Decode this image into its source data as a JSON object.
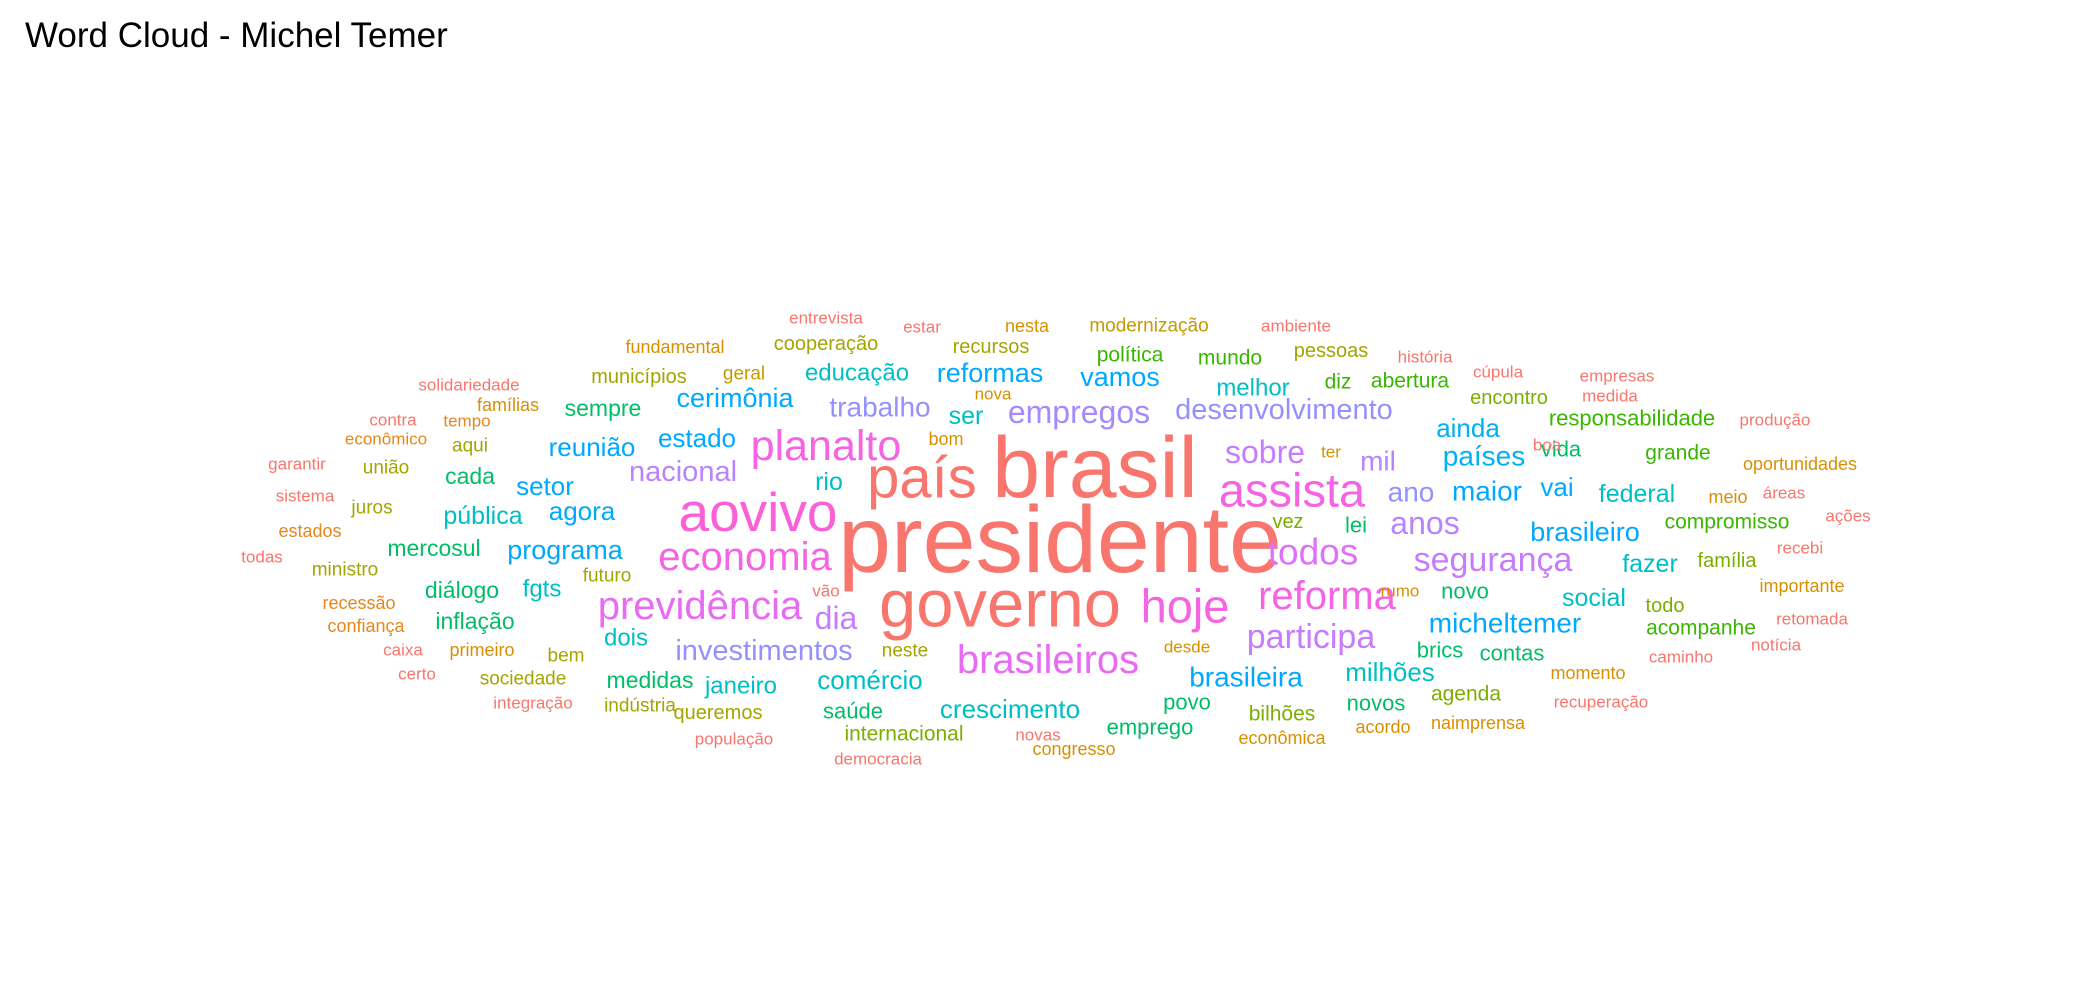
{
  "title": "Word Cloud - Michel Temer",
  "chart_data": {
    "type": "wordcloud",
    "title": "Word Cloud - Michel Temer",
    "words": [
      {
        "text": "presidente",
        "size": 95,
        "color": "#F8766D"
      },
      {
        "text": "brasil",
        "size": 86,
        "color": "#F8766D"
      },
      {
        "text": "governo",
        "size": 67,
        "color": "#F8766D"
      },
      {
        "text": "país",
        "size": 58,
        "color": "#F8766D"
      },
      {
        "text": "aovivo",
        "size": 55,
        "color": "#FB61D7"
      },
      {
        "text": "assista",
        "size": 47,
        "color": "#F564E3"
      },
      {
        "text": "hoje",
        "size": 47,
        "color": "#F564E3"
      },
      {
        "text": "planalto",
        "size": 43,
        "color": "#F564E3"
      },
      {
        "text": "economia",
        "size": 40,
        "color": "#F564E3"
      },
      {
        "text": "reforma",
        "size": 40,
        "color": "#F564E3"
      },
      {
        "text": "previdência",
        "size": 40,
        "color": "#E76BF3"
      },
      {
        "text": "brasileiros",
        "size": 40,
        "color": "#E76BF3"
      },
      {
        "text": "todos",
        "size": 37,
        "color": "#DF70F8"
      },
      {
        "text": "segurança",
        "size": 34,
        "color": "#C77CFF"
      },
      {
        "text": "participa",
        "size": 34,
        "color": "#C77CFF"
      },
      {
        "text": "sobre",
        "size": 32,
        "color": "#C77CFF"
      },
      {
        "text": "anos",
        "size": 32,
        "color": "#B983FF"
      },
      {
        "text": "dia",
        "size": 32,
        "color": "#C77CFF"
      },
      {
        "text": "empregos",
        "size": 32,
        "color": "#A58AFF"
      },
      {
        "text": "desenvolvimento",
        "size": 29,
        "color": "#9590FF"
      },
      {
        "text": "investimentos",
        "size": 29,
        "color": "#9590FF"
      },
      {
        "text": "nacional",
        "size": 29,
        "color": "#B983FF"
      },
      {
        "text": "trabalho",
        "size": 28,
        "color": "#9590FF"
      },
      {
        "text": "mil",
        "size": 28,
        "color": "#B983FF"
      },
      {
        "text": "ano",
        "size": 28,
        "color": "#9590FF"
      },
      {
        "text": "micheltemer",
        "size": 28,
        "color": "#00A9FF"
      },
      {
        "text": "brasileira",
        "size": 28,
        "color": "#00A9FF"
      },
      {
        "text": "maior",
        "size": 28,
        "color": "#00A9FF"
      },
      {
        "text": "países",
        "size": 28,
        "color": "#00B0F6"
      },
      {
        "text": "brasileiro",
        "size": 27,
        "color": "#00A9FF"
      },
      {
        "text": "programa",
        "size": 27,
        "color": "#00A9FF"
      },
      {
        "text": "cerimônia",
        "size": 27,
        "color": "#00A9FF"
      },
      {
        "text": "reformas",
        "size": 27,
        "color": "#00A9FF"
      },
      {
        "text": "vamos",
        "size": 27,
        "color": "#00A9FF"
      },
      {
        "text": "estado",
        "size": 26,
        "color": "#00A9FF"
      },
      {
        "text": "agora",
        "size": 26,
        "color": "#00A9FF"
      },
      {
        "text": "setor",
        "size": 26,
        "color": "#00A9FF"
      },
      {
        "text": "reunião",
        "size": 26,
        "color": "#00A9FF"
      },
      {
        "text": "vai",
        "size": 26,
        "color": "#00A9FF"
      },
      {
        "text": "ainda",
        "size": 26,
        "color": "#00B0F6"
      },
      {
        "text": "comércio",
        "size": 26,
        "color": "#00BFC4"
      },
      {
        "text": "crescimento",
        "size": 26,
        "color": "#00BFC4"
      },
      {
        "text": "milhões",
        "size": 26,
        "color": "#00BFC4"
      },
      {
        "text": "social",
        "size": 25,
        "color": "#00BFC4"
      },
      {
        "text": "federal",
        "size": 25,
        "color": "#00BFC4"
      },
      {
        "text": "pública",
        "size": 25,
        "color": "#00BFC4"
      },
      {
        "text": "ser",
        "size": 25,
        "color": "#00BFC4"
      },
      {
        "text": "fazer",
        "size": 25,
        "color": "#00BFC4"
      },
      {
        "text": "rio",
        "size": 25,
        "color": "#00BFC4"
      },
      {
        "text": "fgts",
        "size": 24,
        "color": "#00BFC4"
      },
      {
        "text": "dois",
        "size": 24,
        "color": "#00BFC4"
      },
      {
        "text": "janeiro",
        "size": 24,
        "color": "#00BFC4"
      },
      {
        "text": "educação",
        "size": 24,
        "color": "#00BFC4"
      },
      {
        "text": "melhor",
        "size": 24,
        "color": "#00BFC4"
      },
      {
        "text": "mercosul",
        "size": 23,
        "color": "#00BE67"
      },
      {
        "text": "diálogo",
        "size": 23,
        "color": "#00BE67"
      },
      {
        "text": "inflação",
        "size": 23,
        "color": "#00BE67"
      },
      {
        "text": "cada",
        "size": 23,
        "color": "#00BE67"
      },
      {
        "text": "sempre",
        "size": 23,
        "color": "#00BE67"
      },
      {
        "text": "medidas",
        "size": 23,
        "color": "#00BE67"
      },
      {
        "text": "saúde",
        "size": 22,
        "color": "#00BE67"
      },
      {
        "text": "lei",
        "size": 22,
        "color": "#00BE67"
      },
      {
        "text": "vida",
        "size": 22,
        "color": "#00BE67"
      },
      {
        "text": "novos",
        "size": 22,
        "color": "#00BE67"
      },
      {
        "text": "novo",
        "size": 22,
        "color": "#00BE67"
      },
      {
        "text": "contas",
        "size": 22,
        "color": "#00BE67"
      },
      {
        "text": "povo",
        "size": 22,
        "color": "#00BE67"
      },
      {
        "text": "emprego",
        "size": 22,
        "color": "#00BE67"
      },
      {
        "text": "brics",
        "size": 22,
        "color": "#00BE67"
      },
      {
        "text": "responsabilidade",
        "size": 22,
        "color": "#39B600"
      },
      {
        "text": "compromisso",
        "size": 21,
        "color": "#39B600"
      },
      {
        "text": "acompanhe",
        "size": 21,
        "color": "#39B600"
      },
      {
        "text": "diz",
        "size": 21,
        "color": "#39B600"
      },
      {
        "text": "abertura",
        "size": 21,
        "color": "#39B600"
      },
      {
        "text": "política",
        "size": 21,
        "color": "#39B600"
      },
      {
        "text": "mundo",
        "size": 21,
        "color": "#39B600"
      },
      {
        "text": "grande",
        "size": 21,
        "color": "#39B600"
      },
      {
        "text": "internacional",
        "size": 21,
        "color": "#7CAE00"
      },
      {
        "text": "bilhões",
        "size": 21,
        "color": "#7CAE00"
      },
      {
        "text": "agenda",
        "size": 21,
        "color": "#7CAE00"
      },
      {
        "text": "encontro",
        "size": 20,
        "color": "#7CAE00"
      },
      {
        "text": "família",
        "size": 20,
        "color": "#7CAE00"
      },
      {
        "text": "todo",
        "size": 20,
        "color": "#7CAE00"
      },
      {
        "text": "vez",
        "size": 20,
        "color": "#7CAE00"
      },
      {
        "text": "pessoas",
        "size": 20,
        "color": "#A3A500"
      },
      {
        "text": "municípios",
        "size": 20,
        "color": "#A3A500"
      },
      {
        "text": "cooperação",
        "size": 20,
        "color": "#A3A500"
      },
      {
        "text": "recursos",
        "size": 20,
        "color": "#A3A500"
      },
      {
        "text": "queremos",
        "size": 20,
        "color": "#A3A500"
      },
      {
        "text": "sociedade",
        "size": 19,
        "color": "#A3A500"
      },
      {
        "text": "bem",
        "size": 19,
        "color": "#A3A500"
      },
      {
        "text": "futuro",
        "size": 19,
        "color": "#A3A500"
      },
      {
        "text": "neste",
        "size": 19,
        "color": "#A3A500"
      },
      {
        "text": "indústria",
        "size": 19,
        "color": "#A3A500"
      },
      {
        "text": "aqui",
        "size": 19,
        "color": "#A3A500"
      },
      {
        "text": "união",
        "size": 19,
        "color": "#A3A500"
      },
      {
        "text": "juros",
        "size": 19,
        "color": "#A3A500"
      },
      {
        "text": "ministro",
        "size": 19,
        "color": "#A3A500"
      },
      {
        "text": "geral",
        "size": 19,
        "color": "#C49A00"
      },
      {
        "text": "modernização",
        "size": 19,
        "color": "#C49A00"
      },
      {
        "text": "fundamental",
        "size": 18,
        "color": "#D89000"
      },
      {
        "text": "nesta",
        "size": 18,
        "color": "#D89000"
      },
      {
        "text": "primeiro",
        "size": 18,
        "color": "#D89000"
      },
      {
        "text": "famílias",
        "size": 18,
        "color": "#D89000"
      },
      {
        "text": "econômica",
        "size": 18,
        "color": "#D89000"
      },
      {
        "text": "acordo",
        "size": 18,
        "color": "#D89000"
      },
      {
        "text": "momento",
        "size": 18,
        "color": "#D89000"
      },
      {
        "text": "meio",
        "size": 18,
        "color": "#D89000"
      },
      {
        "text": "oportunidades",
        "size": 18,
        "color": "#D89000"
      },
      {
        "text": "importante",
        "size": 18,
        "color": "#D89000"
      },
      {
        "text": "naimprensa",
        "size": 18,
        "color": "#D89000"
      },
      {
        "text": "congresso",
        "size": 18,
        "color": "#D89000"
      },
      {
        "text": "bom",
        "size": 18,
        "color": "#D89000"
      },
      {
        "text": "nova",
        "size": 17,
        "color": "#D89000"
      },
      {
        "text": "desde",
        "size": 17,
        "color": "#D89000"
      },
      {
        "text": "ter",
        "size": 17,
        "color": "#D89000"
      },
      {
        "text": "rumo",
        "size": 17,
        "color": "#D89000"
      },
      {
        "text": "recessão",
        "size": 18,
        "color": "#E7861B"
      },
      {
        "text": "confiança",
        "size": 18,
        "color": "#E7861B"
      },
      {
        "text": "estados",
        "size": 18,
        "color": "#E7861B"
      },
      {
        "text": "econômico",
        "size": 17,
        "color": "#E7861B"
      },
      {
        "text": "tempo",
        "size": 17,
        "color": "#E7861B"
      },
      {
        "text": "população",
        "size": 17,
        "color": "#F8766D"
      },
      {
        "text": "democracia",
        "size": 17,
        "color": "#F8766D"
      },
      {
        "text": "novas",
        "size": 17,
        "color": "#F8766D"
      },
      {
        "text": "ambiente",
        "size": 17,
        "color": "#F8766D"
      },
      {
        "text": "estar",
        "size": 17,
        "color": "#F8766D"
      },
      {
        "text": "entrevista",
        "size": 17,
        "color": "#F8766D"
      },
      {
        "text": "solidariedade",
        "size": 17,
        "color": "#F8766D"
      },
      {
        "text": "contra",
        "size": 17,
        "color": "#F8766D"
      },
      {
        "text": "garantir",
        "size": 17,
        "color": "#F8766D"
      },
      {
        "text": "sistema",
        "size": 17,
        "color": "#F8766D"
      },
      {
        "text": "todas",
        "size": 17,
        "color": "#F8766D"
      },
      {
        "text": "caixa",
        "size": 17,
        "color": "#F8766D"
      },
      {
        "text": "certo",
        "size": 17,
        "color": "#F8766D"
      },
      {
        "text": "integração",
        "size": 17,
        "color": "#F8766D"
      },
      {
        "text": "vão",
        "size": 17,
        "color": "#F8766D"
      },
      {
        "text": "história",
        "size": 17,
        "color": "#F8766D"
      },
      {
        "text": "cúpula",
        "size": 17,
        "color": "#F8766D"
      },
      {
        "text": "empresas",
        "size": 17,
        "color": "#F8766D"
      },
      {
        "text": "medida",
        "size": 17,
        "color": "#F8766D"
      },
      {
        "text": "produção",
        "size": 17,
        "color": "#F8766D"
      },
      {
        "text": "boa",
        "size": 17,
        "color": "#F8766D"
      },
      {
        "text": "áreas",
        "size": 17,
        "color": "#F8766D"
      },
      {
        "text": "ações",
        "size": 17,
        "color": "#F8766D"
      },
      {
        "text": "recebi",
        "size": 17,
        "color": "#F8766D"
      },
      {
        "text": "retomada",
        "size": 17,
        "color": "#F8766D"
      },
      {
        "text": "notícia",
        "size": 17,
        "color": "#F8766D"
      },
      {
        "text": "caminho",
        "size": 17,
        "color": "#F8766D"
      },
      {
        "text": "recuperação",
        "size": 17,
        "color": "#F8766D"
      }
    ]
  }
}
